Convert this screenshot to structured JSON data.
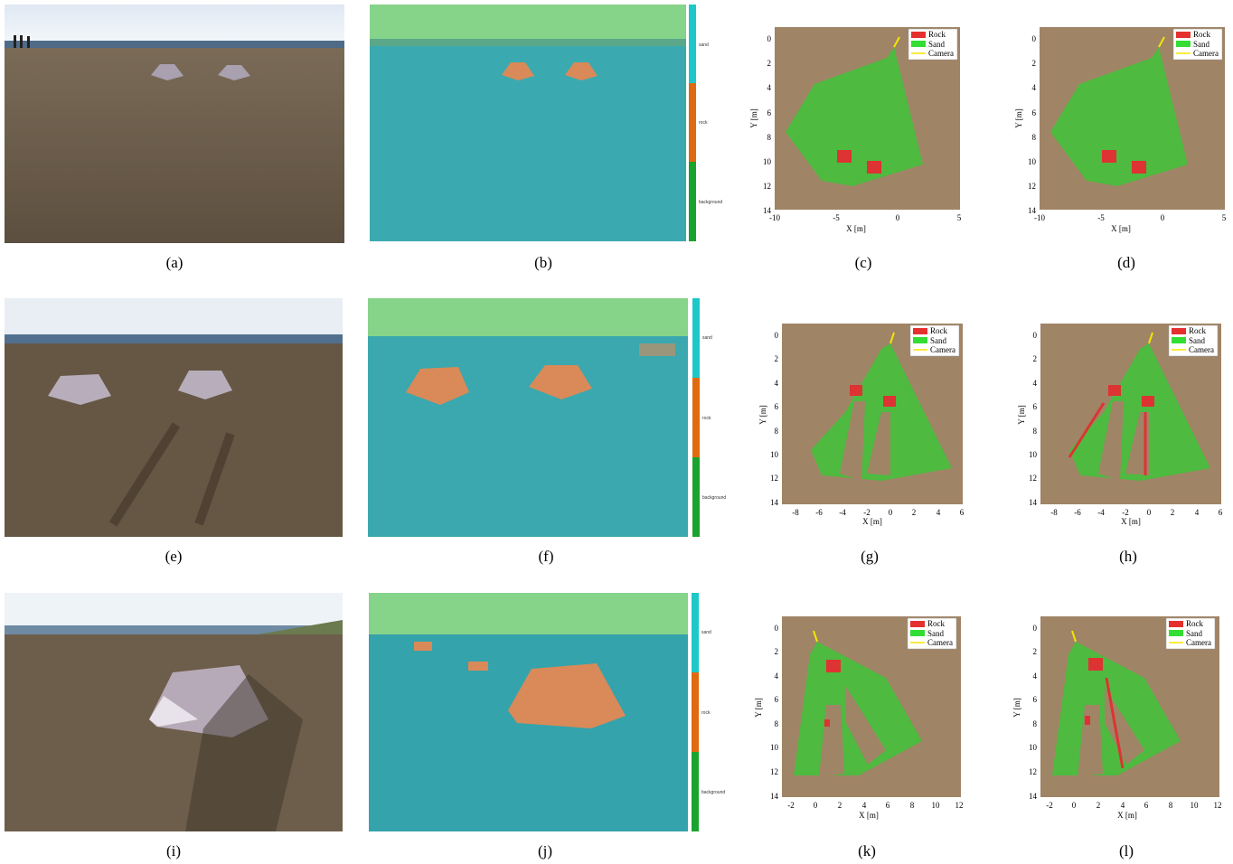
{
  "captions": [
    "(a)",
    "(b)",
    "(c)",
    "(d)",
    "(e)",
    "(f)",
    "(g)",
    "(h)",
    "(i)",
    "(j)",
    "(k)",
    "(l)"
  ],
  "colorbar_labels": [
    "sand",
    "rock",
    "background"
  ],
  "legend": [
    "Rock",
    "Sand",
    "Camera"
  ],
  "axis": {
    "xlabel": "X [m]",
    "ylabel": "Y [m]"
  },
  "map_rows": [
    {
      "xticks": [
        "-10",
        "-5",
        "0",
        "5"
      ],
      "yticks": [
        "0",
        "2",
        "4",
        "6",
        "8",
        "10",
        "12",
        "14"
      ]
    },
    {
      "xticks": [
        "-8",
        "-6",
        "-4",
        "-2",
        "0",
        "2",
        "4",
        "6"
      ],
      "yticks": [
        "0",
        "2",
        "4",
        "6",
        "8",
        "10",
        "12",
        "14"
      ]
    },
    {
      "xticks": [
        "-2",
        "0",
        "2",
        "4",
        "6",
        "8",
        "10",
        "12"
      ],
      "yticks": [
        "0",
        "2",
        "4",
        "6",
        "8",
        "10",
        "12",
        "14"
      ]
    }
  ],
  "colors": {
    "rock": "#e53030",
    "sand": "#33dd33",
    "camera": "#f2e600",
    "colorbar": [
      "#1ec8c8",
      "#e06a10",
      "#1aa32e"
    ]
  }
}
